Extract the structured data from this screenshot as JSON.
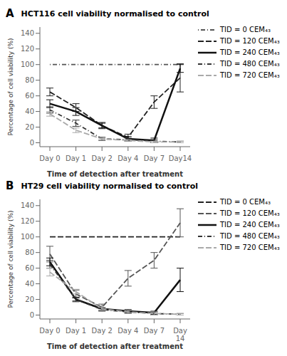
{
  "chart_data": [
    {
      "type": "line",
      "title": "HCT116 cell viability normalised to control",
      "annotations": [
        "A"
      ],
      "x_label": "Time of detection after treatment",
      "y_label": "Percentage of cell viability (%)",
      "categories": [
        "Day 0",
        "Day 1",
        "Day 2",
        "Day 4",
        "Day 7",
        "Day14"
      ],
      "ylim": [
        -5,
        148
      ],
      "yticks": [
        0,
        20,
        40,
        60,
        80,
        100,
        120,
        140
      ],
      "grid": false,
      "legend": "right",
      "series": [
        {
          "name": "TID = 0 CEM₄₃",
          "color": "#555555",
          "line_style": "dotdash",
          "values": [
            100,
            100,
            100,
            100,
            100,
            100
          ],
          "errors": [
            0,
            0,
            0,
            0,
            0,
            0
          ]
        },
        {
          "name": "TID = 120 CEM₄₃",
          "color": "#222222",
          "line_style": "dashed",
          "values": [
            65,
            45,
            22,
            7,
            52,
            83
          ],
          "errors": [
            5,
            5,
            4,
            4,
            8,
            18
          ]
        },
        {
          "name": "TID = 240 CEM₄₃",
          "color": "#111111",
          "line_style": "solid",
          "values": [
            50,
            40,
            22,
            5,
            3,
            95
          ],
          "errors": [
            5,
            5,
            3,
            3,
            3,
            5
          ]
        },
        {
          "name": "TID = 480 CEM₄₃",
          "color": "#333333",
          "line_style": "dashdot",
          "values": [
            42,
            25,
            5,
            4,
            2,
            1
          ],
          "errors": [
            4,
            4,
            2,
            2,
            2,
            1
          ]
        },
        {
          "name": "TID = 720 CEM₄₃",
          "color": "#aaaaaa",
          "line_style": "dashed",
          "values": [
            37,
            16,
            5,
            3,
            1,
            1
          ],
          "errors": [
            3,
            3,
            1,
            1,
            1,
            1
          ]
        }
      ]
    },
    {
      "type": "line",
      "title": "HT29 cell viability normalised to control",
      "annotations": [
        "B"
      ],
      "x_label": "Time of detection after treatment",
      "y_label": "Percentage of cell viability (%)",
      "categories": [
        "Day 0",
        "Day 1",
        "Day 2",
        "Day 4",
        "Day 7",
        "Day\n14"
      ],
      "ylim": [
        -5,
        148
      ],
      "yticks": [
        0,
        20,
        40,
        60,
        80,
        100,
        120,
        140
      ],
      "grid": false,
      "legend": "right",
      "series": [
        {
          "name": "TID = 0 CEM₄₃",
          "color": "#222222",
          "line_style": "dashed",
          "values": [
            100,
            100,
            100,
            100,
            100,
            100
          ],
          "errors": [
            0,
            0,
            0,
            0,
            0,
            0
          ]
        },
        {
          "name": "TID = 120 CEM₄₃",
          "color": "#555555",
          "line_style": "dashed",
          "values": [
            78,
            27,
            10,
            47,
            70,
            118
          ],
          "errors": [
            10,
            5,
            4,
            10,
            10,
            18
          ]
        },
        {
          "name": "TID = 240 CEM₄₃",
          "color": "#111111",
          "line_style": "solid",
          "values": [
            68,
            20,
            8,
            5,
            3,
            45
          ],
          "errors": [
            5,
            2,
            2,
            2,
            2,
            15
          ]
        },
        {
          "name": "TID = 480 CEM₄₃",
          "color": "#333333",
          "line_style": "dashdot",
          "values": [
            65,
            20,
            7,
            4,
            2,
            1
          ],
          "errors": [
            5,
            3,
            2,
            2,
            2,
            1
          ]
        },
        {
          "name": "TID = 720 CEM₄₃",
          "color": "#aaaaaa",
          "line_style": "dashed",
          "values": [
            55,
            30,
            8,
            4,
            2,
            1
          ],
          "errors": [
            5,
            3,
            2,
            2,
            2,
            1
          ]
        }
      ]
    }
  ]
}
